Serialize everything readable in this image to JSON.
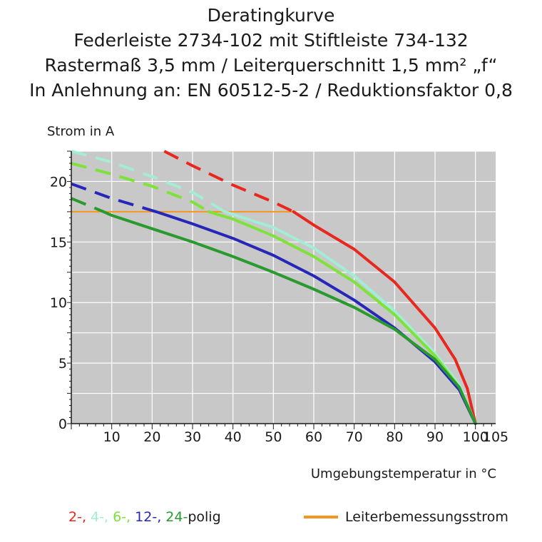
{
  "colors": {
    "red": "#e8281e",
    "turquoise": "#a3ecd6",
    "lightgreen": "#7fe23a",
    "blue": "#2626b8",
    "darkgreen": "#2a9a2f",
    "orange": "#f7961e",
    "plot_bg": "#c8c8c8",
    "grid": "#ffffff",
    "axis": "#1a1a1a"
  },
  "chart_data": {
    "type": "line",
    "title_lines": [
      "Deratingkurve",
      "Federleiste 2734-102 mit Stiftleiste 734-132",
      "Rastermaß 3,5 mm / Leiterquerschnitt 1,5 mm² „f“",
      "In Anlehnung an: EN 60512-5-2 / Reduktionsfaktor 0,8"
    ],
    "ylabel": "Strom in A",
    "xlabel": "Umgebungstemperatur in °C",
    "xlim": [
      0,
      105
    ],
    "ylim": [
      0,
      22.5
    ],
    "x_ticks": [
      10,
      20,
      30,
      40,
      50,
      60,
      70,
      80,
      90,
      100,
      105
    ],
    "x_tick_labels": [
      "10",
      "20",
      "30",
      "40",
      "50",
      "60",
      "70",
      "80",
      "90",
      "100",
      "105"
    ],
    "y_ticks": [
      0,
      5,
      10,
      15,
      20
    ],
    "y_tick_labels": [
      "0",
      "5",
      "10",
      "15",
      "20"
    ],
    "grid": true,
    "legend_placement": "bottom",
    "rated_current": {
      "label": "Leiterbemessungsstrom",
      "value": 17.5,
      "color_key": "orange"
    },
    "series": [
      {
        "name": "2-",
        "color_key": "red",
        "dashed": [
          [
            23,
            22.5
          ],
          [
            30,
            21.3
          ],
          [
            40,
            19.7
          ],
          [
            50,
            18.3
          ],
          [
            55,
            17.5
          ]
        ],
        "solid": [
          [
            55,
            17.5
          ],
          [
            60,
            16.4
          ],
          [
            70,
            14.4
          ],
          [
            80,
            11.7
          ],
          [
            90,
            7.9
          ],
          [
            95,
            5.3
          ],
          [
            98,
            2.9
          ],
          [
            100,
            0
          ]
        ]
      },
      {
        "name": "4-",
        "color_key": "turquoise",
        "dashed": [
          [
            0,
            22.5
          ],
          [
            10,
            21.6
          ],
          [
            20,
            20.4
          ],
          [
            30,
            19.1
          ],
          [
            38,
            17.5
          ]
        ],
        "solid": [
          [
            38,
            17.5
          ],
          [
            50,
            16.2
          ],
          [
            60,
            14.5
          ],
          [
            70,
            12.2
          ],
          [
            80,
            9.3
          ],
          [
            90,
            5.8
          ],
          [
            96,
            3.2
          ],
          [
            100,
            0
          ]
        ]
      },
      {
        "name": "6-",
        "color_key": "lightgreen",
        "dashed": [
          [
            0,
            21.5
          ],
          [
            10,
            20.6
          ],
          [
            20,
            19.6
          ],
          [
            30,
            18.3
          ],
          [
            34,
            17.5
          ]
        ],
        "solid": [
          [
            34,
            17.5
          ],
          [
            40,
            16.9
          ],
          [
            50,
            15.5
          ],
          [
            60,
            13.8
          ],
          [
            70,
            11.7
          ],
          [
            80,
            9.0
          ],
          [
            90,
            5.6
          ],
          [
            96,
            3.0
          ],
          [
            100,
            0
          ]
        ]
      },
      {
        "name": "12-",
        "color_key": "blue",
        "dashed": [
          [
            0,
            19.8
          ],
          [
            10,
            18.6
          ],
          [
            21,
            17.5
          ]
        ],
        "solid": [
          [
            21,
            17.5
          ],
          [
            30,
            16.5
          ],
          [
            40,
            15.3
          ],
          [
            50,
            13.9
          ],
          [
            60,
            12.2
          ],
          [
            70,
            10.2
          ],
          [
            80,
            7.9
          ],
          [
            90,
            5.1
          ],
          [
            96,
            2.8
          ],
          [
            100,
            0
          ]
        ]
      },
      {
        "name": "24-",
        "color_key": "darkgreen",
        "dashed": [
          [
            0,
            18.6
          ],
          [
            8,
            17.5
          ]
        ],
        "solid": [
          [
            8,
            17.5
          ],
          [
            10,
            17.2
          ],
          [
            20,
            16.1
          ],
          [
            30,
            15.0
          ],
          [
            40,
            13.8
          ],
          [
            50,
            12.5
          ],
          [
            60,
            11.1
          ],
          [
            70,
            9.6
          ],
          [
            80,
            7.8
          ],
          [
            90,
            5.3
          ],
          [
            96,
            3.0
          ],
          [
            100,
            0
          ]
        ]
      }
    ]
  },
  "legend": {
    "items": [
      {
        "label": "2-",
        "color_key": "red"
      },
      {
        "label": ", ",
        "color_key": "red"
      },
      {
        "label": "4-",
        "color_key": "turquoise"
      },
      {
        "label": ", ",
        "color_key": "turquoise"
      },
      {
        "label": "6-",
        "color_key": "lightgreen"
      },
      {
        "label": ", ",
        "color_key": "lightgreen"
      },
      {
        "label": "12-",
        "color_key": "blue"
      },
      {
        "label": ", ",
        "color_key": "blue"
      },
      {
        "label": "24-",
        "color_key": "darkgreen"
      }
    ],
    "suffix": "polig"
  }
}
